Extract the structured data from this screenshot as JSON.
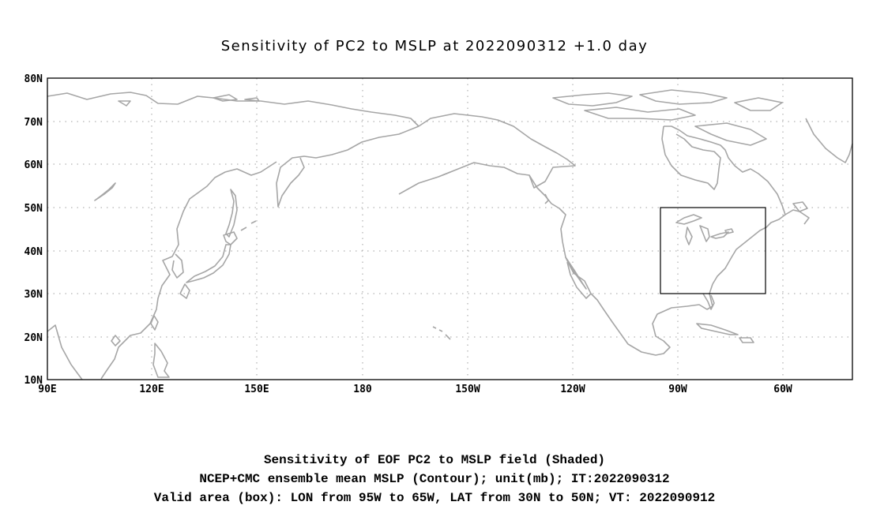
{
  "title": "Sensitivity of PC2 to MSLP at 2022090312 +1.0 day",
  "map": {
    "lon_range": [
      "90E",
      "45W"
    ],
    "lat_range": [
      "10N",
      "80N"
    ],
    "lat_labels": [
      "80N",
      "70N",
      "60N",
      "50N",
      "40N",
      "30N",
      "20N",
      "10N"
    ],
    "lon_labels": [
      "90E",
      "120E",
      "150E",
      "180",
      "150W",
      "120W",
      "90W",
      "60W"
    ],
    "valid_box": {
      "lon_west": "95W",
      "lon_east": "65W",
      "lat_south": "30N",
      "lat_north": "50N"
    },
    "coastline_color": "#a6a6a6",
    "grid_color": "#a0a0a0",
    "box_color": "#000000"
  },
  "captions": [
    "Sensitivity of EOF PC2 to MSLP field (Shaded)",
    "NCEP+CMC ensemble mean MSLP (Contour); unit(mb); IT:2022090312",
    "Valid area (box): LON from 95W to 65W, LAT from 30N to 50N; VT: 2022090912"
  ]
}
